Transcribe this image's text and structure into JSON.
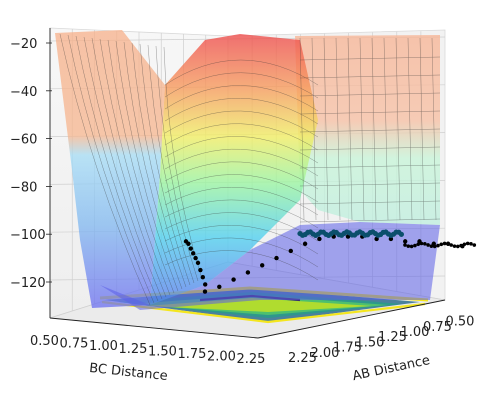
{
  "chart_data": {
    "type": "surface3d",
    "title": "",
    "zlabel": "",
    "xlabel": "AB Distance",
    "ylabel": "BC Distance",
    "z_ticks": [
      -20,
      -40,
      -60,
      -80,
      -100,
      -120
    ],
    "ab_ticks": [
      "0.50",
      "0.75",
      "1.00",
      "1.25",
      "1.50",
      "1.75",
      "2.00",
      "2.25"
    ],
    "bc_ticks": [
      "0.50",
      "0.75",
      "1.00",
      "1.25",
      "1.50",
      "1.75",
      "2.00",
      "2.25"
    ],
    "surface_colormap": "jet",
    "contour_colormap": "viridis",
    "grid": true,
    "trajectory": {
      "color": "#000000",
      "highlight_color": "#0b4f6c",
      "z_path": [
        -103,
        -104,
        -106,
        -108,
        -110,
        -112,
        -115,
        -118,
        -121,
        -124,
        -122,
        -119,
        -116,
        -113,
        -110,
        -107,
        -104,
        -102,
        -101,
        -101,
        -101,
        -102,
        -102,
        -103,
        -103,
        -104,
        -104,
        -105
      ]
    }
  }
}
